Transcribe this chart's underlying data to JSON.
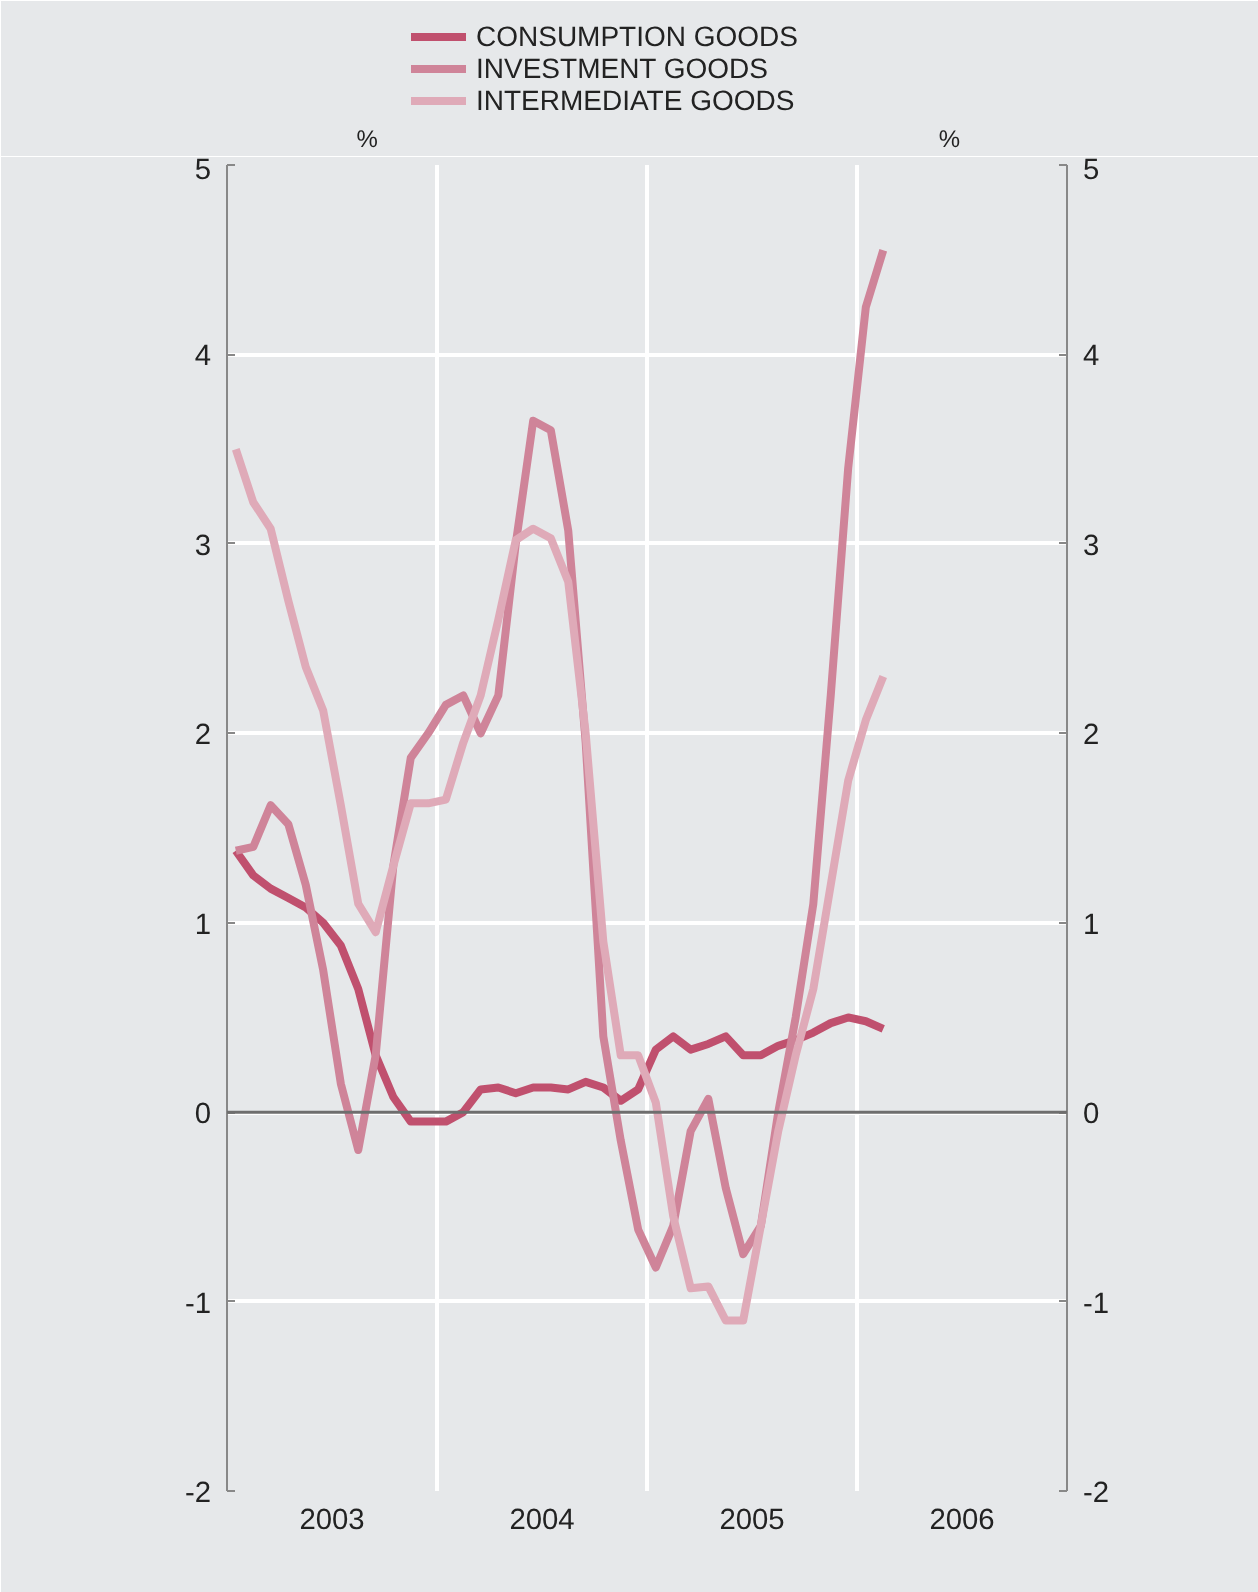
{
  "chart_data": {
    "type": "line",
    "ylabel": "%",
    "y2label": "%",
    "x": [
      2003.042,
      2003.125,
      2003.208,
      2003.292,
      2003.375,
      2003.458,
      2003.542,
      2003.625,
      2003.708,
      2003.792,
      2003.875,
      2003.958,
      2004.042,
      2004.125,
      2004.208,
      2004.292,
      2004.375,
      2004.458,
      2004.542,
      2004.625,
      2004.708,
      2004.792,
      2004.875,
      2004.958,
      2005.042,
      2005.125,
      2005.208,
      2005.292,
      2005.375,
      2005.458,
      2005.542,
      2005.625,
      2005.708,
      2005.792,
      2005.875,
      2005.958,
      2006.042,
      2006.125
    ],
    "series": [
      {
        "name": "CONSUMPTION GOODS",
        "color": "#c0506e",
        "values": [
          1.38,
          1.25,
          1.18,
          1.13,
          1.08,
          1.0,
          0.88,
          0.65,
          0.3,
          0.08,
          -0.05,
          -0.05,
          -0.05,
          0.0,
          0.12,
          0.13,
          0.1,
          0.13,
          0.13,
          0.12,
          0.16,
          0.13,
          0.06,
          0.12,
          0.33,
          0.4,
          0.33,
          0.36,
          0.4,
          0.3,
          0.3,
          0.35,
          0.38,
          0.42,
          0.47,
          0.5,
          0.48,
          0.44
        ]
      },
      {
        "name": "INVESTMENT GOODS",
        "color": "#cf8499",
        "values": [
          1.38,
          1.4,
          1.62,
          1.52,
          1.2,
          0.75,
          0.15,
          -0.2,
          0.3,
          1.3,
          1.87,
          2.0,
          2.15,
          2.2,
          2.0,
          2.2,
          3.0,
          3.65,
          3.6,
          3.07,
          1.95,
          0.4,
          -0.15,
          -0.62,
          -0.82,
          -0.6,
          -0.1,
          0.07,
          -0.4,
          -0.75,
          -0.6,
          0.0,
          0.5,
          1.1,
          2.2,
          3.4,
          4.25,
          4.55
        ]
      },
      {
        "name": "INTERMEDIATE GOODS",
        "color": "#dfaab8",
        "values": [
          3.5,
          3.22,
          3.08,
          2.7,
          2.35,
          2.12,
          1.62,
          1.1,
          0.95,
          1.3,
          1.63,
          1.63,
          1.65,
          1.95,
          2.2,
          2.6,
          3.02,
          3.08,
          3.03,
          2.8,
          2.0,
          0.9,
          0.3,
          0.3,
          0.05,
          -0.55,
          -0.93,
          -0.92,
          -1.1,
          -1.1,
          -0.6,
          -0.1,
          0.3,
          0.65,
          1.2,
          1.75,
          2.07,
          2.3
        ]
      }
    ],
    "xlim": [
      2003,
      2007
    ],
    "xticks": [
      {
        "value": 2003,
        "label": null
      },
      {
        "value": 2003.5,
        "label": "2003"
      },
      {
        "value": 2004,
        "label": null
      },
      {
        "value": 2004.5,
        "label": "2004"
      },
      {
        "value": 2005,
        "label": null
      },
      {
        "value": 2005.5,
        "label": "2005"
      },
      {
        "value": 2006,
        "label": null
      },
      {
        "value": 2006.5,
        "label": "2006"
      },
      {
        "value": 2007,
        "label": null
      }
    ],
    "ylim": [
      -2,
      5
    ],
    "yticks": [
      -2,
      -1,
      0,
      1,
      2,
      3,
      4,
      5
    ],
    "y2lim": [
      -2,
      5
    ],
    "y2ticks": [
      -2,
      -1,
      0,
      1,
      2,
      3,
      4,
      5
    ],
    "ref_lines": [
      {
        "axis": "y",
        "value": 0,
        "label": null,
        "color": "#6e6e6e"
      }
    ],
    "grid": true,
    "legend": "top",
    "line_style": "solid",
    "marker": "none"
  }
}
